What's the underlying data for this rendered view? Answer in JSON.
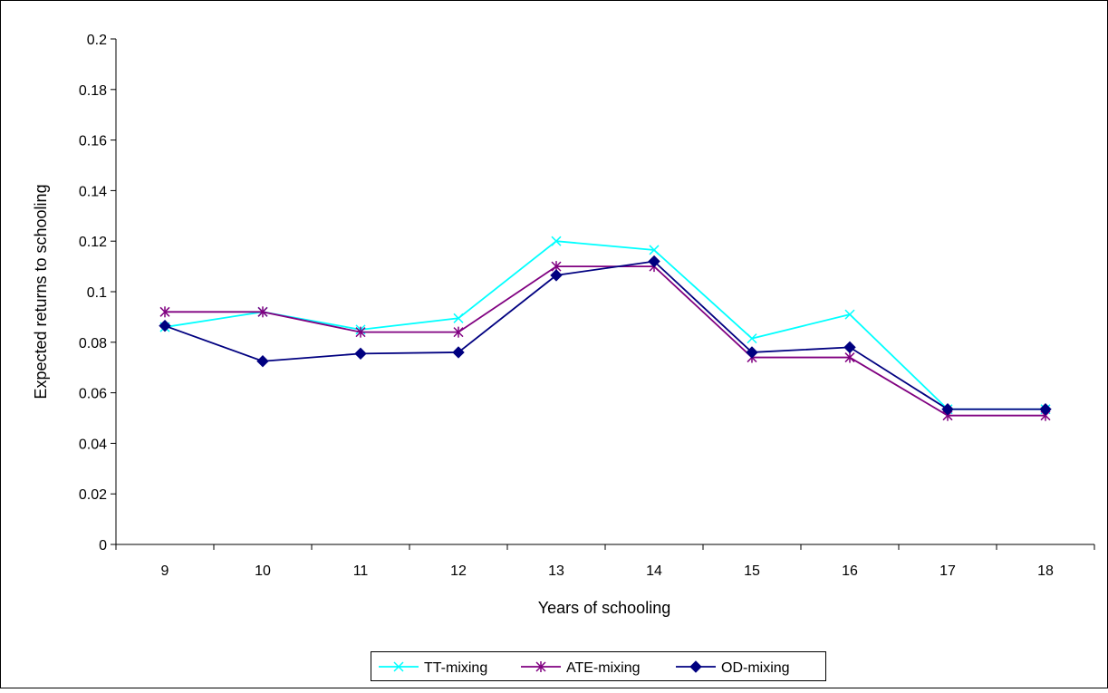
{
  "chart_data": {
    "type": "line",
    "xlabel": "Years of schooling",
    "ylabel": "Expected returns to schooling",
    "categories": [
      "9",
      "10",
      "11",
      "12",
      "13",
      "14",
      "15",
      "16",
      "17",
      "18"
    ],
    "ylim": [
      0,
      0.2
    ],
    "yticks": [
      "0",
      "0.02",
      "0.04",
      "0.06",
      "0.08",
      "0.1",
      "0.12",
      "0.14",
      "0.16",
      "0.18",
      "0.2"
    ],
    "grid": false,
    "legend_position": "bottom",
    "series": [
      {
        "name": "TT-mixing",
        "color": "#00FFFF",
        "marker": "x-icon",
        "values": [
          0.086,
          0.092,
          0.085,
          0.0895,
          0.12,
          0.1165,
          0.0815,
          0.091,
          0.0535,
          0.0535
        ]
      },
      {
        "name": "ATE-mixing",
        "color": "#800080",
        "marker": "asterisk-icon",
        "values": [
          0.092,
          0.092,
          0.084,
          0.084,
          0.11,
          0.11,
          0.074,
          0.074,
          0.051,
          0.051
        ]
      },
      {
        "name": "OD-mixing",
        "color": "#000080",
        "marker": "diamond-icon",
        "values": [
          0.0865,
          0.0725,
          0.0755,
          0.076,
          0.1065,
          0.112,
          0.076,
          0.078,
          0.0535,
          0.0535
        ]
      }
    ]
  }
}
